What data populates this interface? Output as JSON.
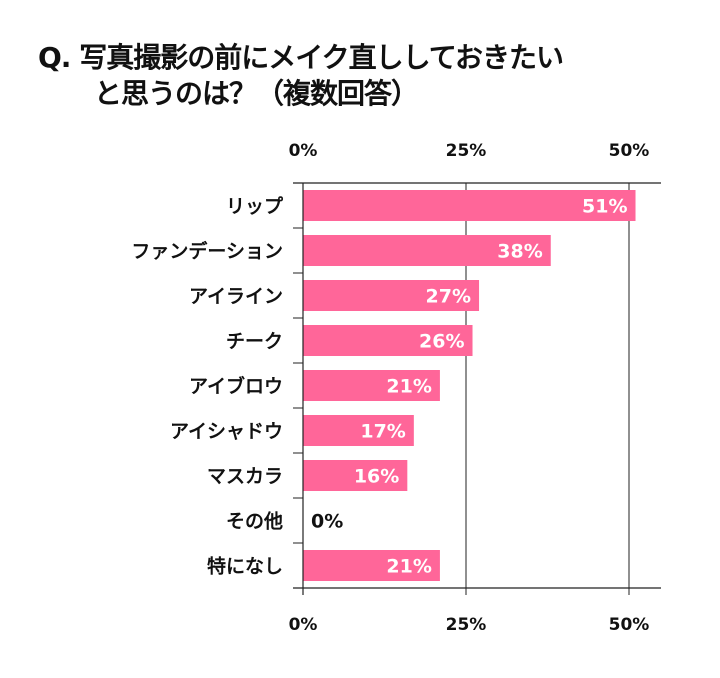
{
  "title_line1": "Q. 写真撮影の前にメイク直ししておきたい",
  "title_line2": "と思うのは？（複数回答）",
  "chart_data": {
    "type": "bar",
    "orientation": "horizontal",
    "title": "Q. 写真撮影の前にメイク直ししておきたい と思うのは？（複数回答）",
    "categories": [
      "リップ",
      "ファンデーション",
      "アイライン",
      "チーク",
      "アイブロウ",
      "アイシャドウ",
      "マスカラ",
      "その他",
      "特になし"
    ],
    "values": [
      51,
      38,
      27,
      26,
      21,
      17,
      16,
      0,
      21
    ],
    "value_labels": [
      "51%",
      "38%",
      "27%",
      "26%",
      "21%",
      "17%",
      "16%",
      "0%",
      "21%"
    ],
    "xlim": [
      0,
      55
    ],
    "xticks": [
      0,
      25,
      50
    ],
    "xtick_labels": [
      "0%",
      "25%",
      "50%"
    ],
    "xticks_top_and_bottom": true,
    "grid": "vertical at ticks",
    "bar_color": "#ff6699",
    "label_color_inside": "#ffffff",
    "label_color_outside": "#111111"
  }
}
